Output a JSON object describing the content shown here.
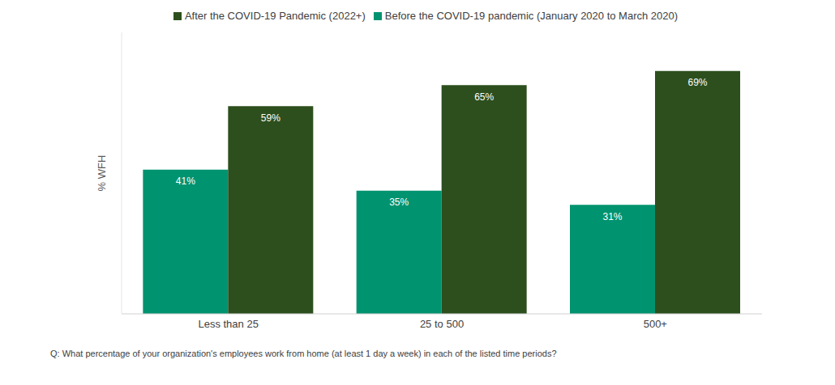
{
  "chart_data": {
    "type": "bar",
    "categories": [
      "Less than 25",
      "25 to 500",
      "500+"
    ],
    "series": [
      {
        "name": "Before the COVID-19 pandemic (January 2020 to March 2020)",
        "color": "#00936f",
        "values": [
          41,
          35,
          31
        ],
        "value_labels": [
          "41%",
          "35%",
          "31%"
        ]
      },
      {
        "name": "After the COVID-19 Pandemic (2022+)",
        "color": "#2c4f1d",
        "values": [
          59,
          65,
          69
        ],
        "value_labels": [
          "59%",
          "65%",
          "69%"
        ]
      }
    ],
    "y_label": "% WFH",
    "caption": "Q: What percentage of your organization's employees work from home (at least 1 day a week) in each of the listed time periods?",
    "ylim": [
      0,
      80
    ],
    "tick_labels": "x",
    "data_labels": true,
    "legend": "top",
    "grid": false
  }
}
